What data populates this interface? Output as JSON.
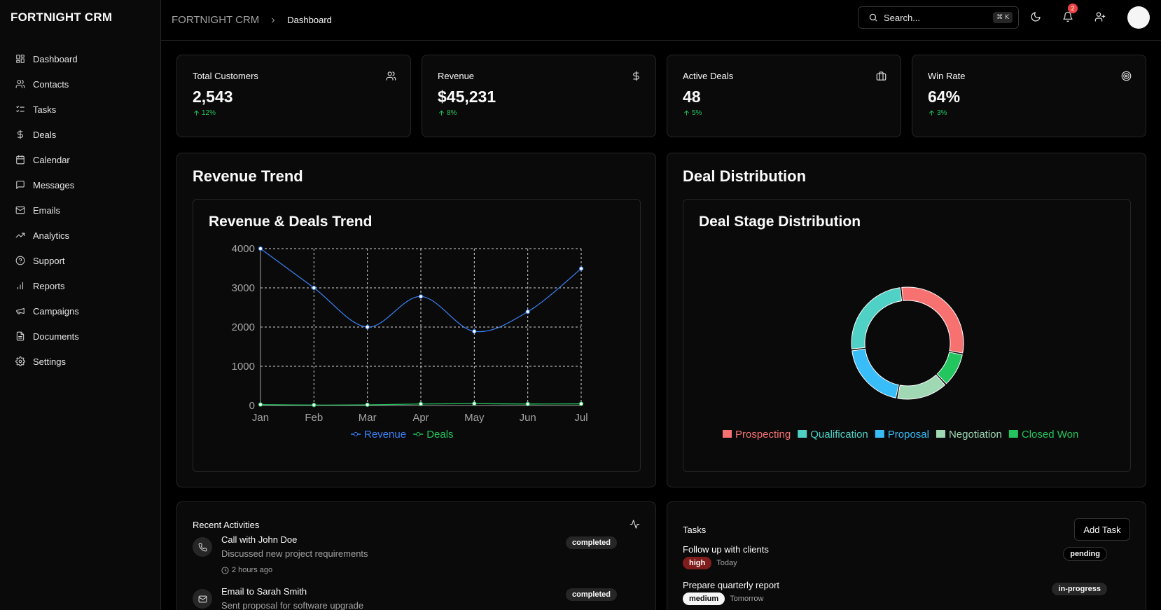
{
  "app": {
    "brand": "FORTNIGHT CRM"
  },
  "sidebar": {
    "items": [
      {
        "label": "Dashboard",
        "icon": "layout-grid-icon"
      },
      {
        "label": "Contacts",
        "icon": "users-icon"
      },
      {
        "label": "Tasks",
        "icon": "list-checks-icon"
      },
      {
        "label": "Deals",
        "icon": "dollar-icon"
      },
      {
        "label": "Calendar",
        "icon": "calendar-icon"
      },
      {
        "label": "Messages",
        "icon": "message-icon"
      },
      {
        "label": "Emails",
        "icon": "mail-icon"
      },
      {
        "label": "Analytics",
        "icon": "trending-up-icon"
      },
      {
        "label": "Support",
        "icon": "help-circle-icon"
      },
      {
        "label": "Reports",
        "icon": "bar-chart-icon"
      },
      {
        "label": "Campaigns",
        "icon": "megaphone-icon"
      },
      {
        "label": "Documents",
        "icon": "file-icon"
      },
      {
        "label": "Settings",
        "icon": "gear-icon"
      }
    ]
  },
  "header": {
    "breadcrumb_root": "FORTNIGHT CRM",
    "breadcrumb_current": "Dashboard",
    "search_placeholder": "Search...",
    "search_shortcut": "⌘ K",
    "notification_count": "2"
  },
  "stats": [
    {
      "title": "Total Customers",
      "value": "2,543",
      "delta": "12%",
      "icon": "users-icon"
    },
    {
      "title": "Revenue",
      "value": "$45,231",
      "delta": "8%",
      "icon": "dollar-icon"
    },
    {
      "title": "Active Deals",
      "value": "48",
      "delta": "5%",
      "icon": "briefcase-icon"
    },
    {
      "title": "Win Rate",
      "value": "64%",
      "delta": "3%",
      "icon": "target-icon"
    }
  ],
  "revenue_panel": {
    "title": "Revenue Trend",
    "chart_title": "Revenue & Deals Trend"
  },
  "distribution_panel": {
    "title": "Deal Distribution",
    "chart_title": "Deal Stage Distribution"
  },
  "colors": {
    "revenue": "#3b82f6",
    "deals": "#22c55e",
    "prospecting": "#f87171",
    "qualification": "#4fd1c5",
    "proposal": "#38bdf8",
    "negotiation": "#9fd8b3",
    "closed_won": "#22c55e"
  },
  "chart_data": [
    {
      "type": "line",
      "title": "Revenue & Deals Trend",
      "categories": [
        "Jan",
        "Feb",
        "Mar",
        "Apr",
        "May",
        "Jun",
        "Jul"
      ],
      "series": [
        {
          "name": "Revenue",
          "values": [
            4000,
            3000,
            2000,
            2780,
            1890,
            2390,
            3490
          ]
        },
        {
          "name": "Deals",
          "values": [
            24,
            13,
            18,
            39,
            48,
            38,
            43
          ]
        }
      ],
      "ylim": [
        0,
        4000
      ],
      "yticks": [
        "0",
        "1000",
        "2000",
        "3000",
        "4000"
      ],
      "grid": true,
      "legend": "bottom"
    },
    {
      "type": "pie",
      "title": "Deal Stage Distribution",
      "categories": [
        "Prospecting",
        "Qualification",
        "Proposal",
        "Negotiation",
        "Closed Won"
      ],
      "values": [
        30,
        25,
        20,
        15,
        10
      ],
      "donut": true,
      "legend": "bottom"
    }
  ],
  "activities": {
    "title": "Recent Activities",
    "items": [
      {
        "title": "Call with John Doe",
        "description": "Discussed new project requirements",
        "time": "2 hours ago",
        "status": "completed",
        "icon": "phone-icon"
      },
      {
        "title": "Email to Sarah Smith",
        "description": "Sent proposal for software upgrade",
        "time": "",
        "status": "completed",
        "icon": "mail-icon"
      }
    ]
  },
  "tasks": {
    "title": "Tasks",
    "add_label": "Add Task",
    "items": [
      {
        "title": "Follow up with clients",
        "priority": "high",
        "due": "Today",
        "status": "pending"
      },
      {
        "title": "Prepare quarterly report",
        "priority": "medium",
        "due": "Tomorrow",
        "status": "in-progress"
      }
    ]
  }
}
